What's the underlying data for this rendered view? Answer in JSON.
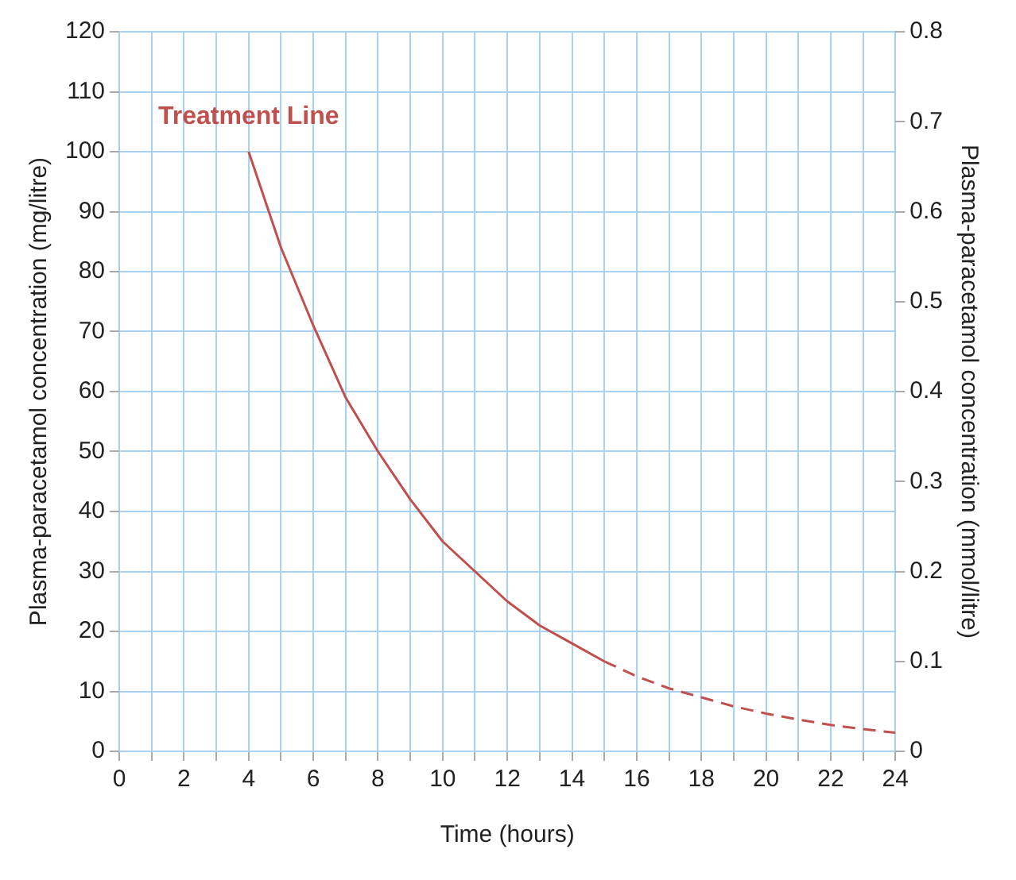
{
  "chart_data": {
    "type": "line",
    "xlabel": "Time (hours)",
    "ylabel": "Plasma-paracetamol concentration (mg/litre)",
    "y2label": "Plasma-paracetamol concentration (mmol/litre)",
    "series": [
      {
        "color": "#c0504d",
        "line_style": "solid",
        "x": [
          4,
          5,
          6,
          7,
          8,
          9,
          10,
          11,
          12,
          13,
          14,
          15
        ],
        "values": [
          100,
          84,
          71,
          59,
          50,
          42,
          35,
          30,
          25,
          21,
          18,
          15
        ]
      },
      {
        "color": "#c0504d",
        "line_style": "dashed",
        "x": [
          15,
          16,
          17,
          18,
          19,
          20,
          21,
          22,
          23,
          24
        ],
        "values": [
          15,
          12.5,
          10.5,
          9,
          7.5,
          6.3,
          5.3,
          4.4,
          3.7,
          3.1
        ]
      }
    ],
    "xlim": [
      0,
      24
    ],
    "xticks": [
      0,
      {
        "value": 1,
        "label": null
      },
      2,
      {
        "value": 3,
        "label": null
      },
      4,
      {
        "value": 5,
        "label": null
      },
      6,
      {
        "value": 7,
        "label": null
      },
      8,
      {
        "value": 9,
        "label": null
      },
      10,
      {
        "value": 11,
        "label": null
      },
      12,
      {
        "value": 13,
        "label": null
      },
      14,
      {
        "value": 15,
        "label": null
      },
      16,
      {
        "value": 17,
        "label": null
      },
      18,
      {
        "value": 19,
        "label": null
      },
      20,
      {
        "value": 21,
        "label": null
      },
      22,
      {
        "value": 23,
        "label": null
      },
      24
    ],
    "ylim": [
      0,
      120
    ],
    "yticks": [
      0,
      10,
      20,
      30,
      40,
      50,
      60,
      70,
      80,
      90,
      100,
      110,
      120
    ],
    "y2lim": [
      0,
      0.8
    ],
    "y2ticks": [
      0,
      0.1,
      0.2,
      0.3,
      0.4,
      0.5,
      0.6,
      0.7,
      0.8
    ],
    "grid": true,
    "legend": false,
    "marker": "none",
    "annotations": [
      {
        "text": "Treatment Line",
        "x": 4,
        "y": 100
      }
    ]
  }
}
